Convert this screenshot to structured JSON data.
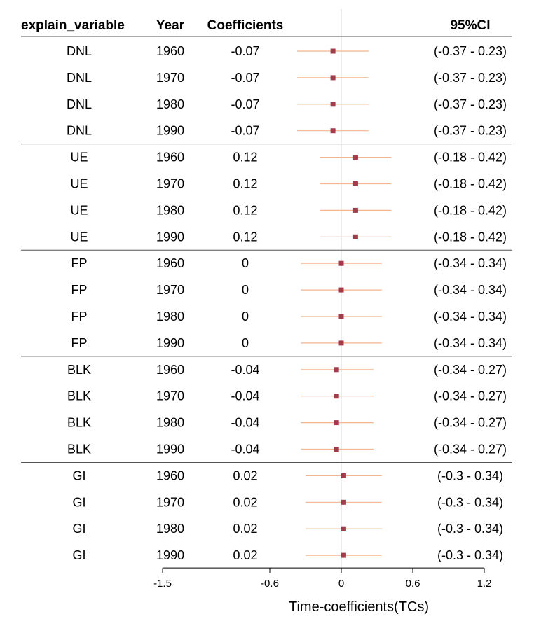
{
  "chart_data": {
    "type": "forest",
    "title": "",
    "columns": [
      "explain_variable",
      "Year",
      "Coefficients",
      "95%CI"
    ],
    "xlabel": "Time-coefficients(TCs)",
    "xlim": [
      -1.5,
      1.2
    ],
    "xticks": [
      -1.5,
      -0.6,
      0,
      0.6,
      1.2
    ],
    "xtick_labels": [
      "-1.5",
      "-0.6",
      "0",
      "0.6",
      "1.2"
    ],
    "reference_line": 0,
    "grid": false,
    "colors": {
      "point": "#A23B4B",
      "ci": "#F2B591",
      "ref": "#D9D9D9",
      "rule": "#555555"
    },
    "groups": [
      {
        "variable": "DNL",
        "rows": [
          {
            "variable": "DNL",
            "year": "1960",
            "coef_label": "-0.07",
            "coef": -0.07,
            "lo": -0.37,
            "hi": 0.23,
            "ci_label": "(-0.37 - 0.23)"
          },
          {
            "variable": "DNL",
            "year": "1970",
            "coef_label": "-0.07",
            "coef": -0.07,
            "lo": -0.37,
            "hi": 0.23,
            "ci_label": "(-0.37 - 0.23)"
          },
          {
            "variable": "DNL",
            "year": "1980",
            "coef_label": "-0.07",
            "coef": -0.07,
            "lo": -0.37,
            "hi": 0.23,
            "ci_label": "(-0.37 - 0.23)"
          },
          {
            "variable": "DNL",
            "year": "1990",
            "coef_label": "-0.07",
            "coef": -0.07,
            "lo": -0.37,
            "hi": 0.23,
            "ci_label": "(-0.37 - 0.23)"
          }
        ]
      },
      {
        "variable": "UE",
        "rows": [
          {
            "variable": "UE",
            "year": "1960",
            "coef_label": "0.12",
            "coef": 0.12,
            "lo": -0.18,
            "hi": 0.42,
            "ci_label": "(-0.18 - 0.42)"
          },
          {
            "variable": "UE",
            "year": "1970",
            "coef_label": "0.12",
            "coef": 0.12,
            "lo": -0.18,
            "hi": 0.42,
            "ci_label": "(-0.18 - 0.42)"
          },
          {
            "variable": "UE",
            "year": "1980",
            "coef_label": "0.12",
            "coef": 0.12,
            "lo": -0.18,
            "hi": 0.42,
            "ci_label": "(-0.18 - 0.42)"
          },
          {
            "variable": "UE",
            "year": "1990",
            "coef_label": "0.12",
            "coef": 0.12,
            "lo": -0.18,
            "hi": 0.42,
            "ci_label": "(-0.18 - 0.42)"
          }
        ]
      },
      {
        "variable": "FP",
        "rows": [
          {
            "variable": "FP",
            "year": "1960",
            "coef_label": "0",
            "coef": 0,
            "lo": -0.34,
            "hi": 0.34,
            "ci_label": "(-0.34 - 0.34)"
          },
          {
            "variable": "FP",
            "year": "1970",
            "coef_label": "0",
            "coef": 0,
            "lo": -0.34,
            "hi": 0.34,
            "ci_label": "(-0.34 - 0.34)"
          },
          {
            "variable": "FP",
            "year": "1980",
            "coef_label": "0",
            "coef": 0,
            "lo": -0.34,
            "hi": 0.34,
            "ci_label": "(-0.34 - 0.34)"
          },
          {
            "variable": "FP",
            "year": "1990",
            "coef_label": "0",
            "coef": 0,
            "lo": -0.34,
            "hi": 0.34,
            "ci_label": "(-0.34 - 0.34)"
          }
        ]
      },
      {
        "variable": "BLK",
        "rows": [
          {
            "variable": "BLK",
            "year": "1960",
            "coef_label": "-0.04",
            "coef": -0.04,
            "lo": -0.34,
            "hi": 0.27,
            "ci_label": "(-0.34 - 0.27)"
          },
          {
            "variable": "BLK",
            "year": "1970",
            "coef_label": "-0.04",
            "coef": -0.04,
            "lo": -0.34,
            "hi": 0.27,
            "ci_label": "(-0.34 - 0.27)"
          },
          {
            "variable": "BLK",
            "year": "1980",
            "coef_label": "-0.04",
            "coef": -0.04,
            "lo": -0.34,
            "hi": 0.27,
            "ci_label": "(-0.34 - 0.27)"
          },
          {
            "variable": "BLK",
            "year": "1990",
            "coef_label": "-0.04",
            "coef": -0.04,
            "lo": -0.34,
            "hi": 0.27,
            "ci_label": "(-0.34 - 0.27)"
          }
        ]
      },
      {
        "variable": "GI",
        "rows": [
          {
            "variable": "GI",
            "year": "1960",
            "coef_label": "0.02",
            "coef": 0.02,
            "lo": -0.3,
            "hi": 0.34,
            "ci_label": "(-0.3 - 0.34)"
          },
          {
            "variable": "GI",
            "year": "1970",
            "coef_label": "0.02",
            "coef": 0.02,
            "lo": -0.3,
            "hi": 0.34,
            "ci_label": "(-0.3 - 0.34)"
          },
          {
            "variable": "GI",
            "year": "1980",
            "coef_label": "0.02",
            "coef": 0.02,
            "lo": -0.3,
            "hi": 0.34,
            "ci_label": "(-0.3 - 0.34)"
          },
          {
            "variable": "GI",
            "year": "1990",
            "coef_label": "0.02",
            "coef": 0.02,
            "lo": -0.3,
            "hi": 0.34,
            "ci_label": "(-0.3 - 0.34)"
          }
        ]
      }
    ]
  }
}
